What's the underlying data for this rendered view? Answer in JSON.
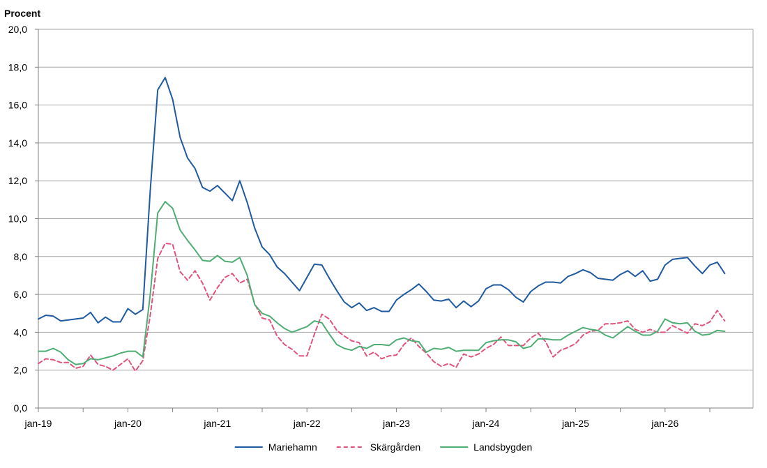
{
  "chart_data": {
    "type": "line",
    "ylabel": "Procent",
    "ylim": [
      0,
      20
    ],
    "yticks": [
      "0,0",
      "2,0",
      "4,0",
      "6,0",
      "8,0",
      "10,0",
      "12,0",
      "14,0",
      "16,0",
      "18,0",
      "20,0"
    ],
    "xtick_labels": [
      "jan-19",
      "jan-20",
      "jan-21",
      "jan-22",
      "jan-23",
      "jan-24",
      "jan-25",
      "jan-26"
    ],
    "x_start": "2019-01",
    "x_count": 93,
    "grid": true,
    "legend": "bottom",
    "series": [
      {
        "name": "Mariehamn",
        "color": "#1f5aa0",
        "dash": "",
        "values": [
          4.7,
          4.9,
          4.85,
          4.6,
          4.65,
          4.7,
          4.75,
          5.05,
          4.5,
          4.8,
          4.55,
          4.55,
          5.25,
          4.95,
          5.2,
          11.5,
          16.8,
          17.45,
          16.3,
          14.3,
          13.2,
          12.65,
          11.65,
          11.45,
          11.75,
          11.35,
          10.95,
          12.0,
          10.85,
          9.5,
          8.5,
          8.1,
          7.45,
          7.1,
          6.65,
          6.2,
          6.9,
          7.6,
          7.55,
          6.85,
          6.2,
          5.6,
          5.3,
          5.55,
          5.15,
          5.3,
          5.1,
          5.1,
          5.7,
          6.0,
          6.25,
          6.55,
          6.15,
          5.7,
          5.65,
          5.75,
          5.3,
          5.65,
          5.35,
          5.65,
          6.3,
          6.5,
          6.5,
          6.25,
          5.85,
          5.6,
          6.15,
          6.45,
          6.65,
          6.65,
          6.6,
          6.95,
          7.1,
          7.3,
          7.15,
          6.85,
          6.8,
          6.75,
          7.05,
          7.25,
          6.95,
          7.25,
          6.7,
          6.8,
          7.55,
          7.85,
          7.9,
          7.95,
          7.5,
          7.1,
          7.55,
          7.7,
          7.1
        ]
      },
      {
        "name": "Skärgården",
        "color": "#e0537b",
        "dash": "6,4",
        "values": [
          2.35,
          2.6,
          2.55,
          2.4,
          2.4,
          2.1,
          2.2,
          2.8,
          2.3,
          2.2,
          2.0,
          2.3,
          2.6,
          1.95,
          2.5,
          4.9,
          7.9,
          8.7,
          8.65,
          7.2,
          6.75,
          7.25,
          6.6,
          5.7,
          6.35,
          6.9,
          7.1,
          6.6,
          6.8,
          5.5,
          4.75,
          4.65,
          3.8,
          3.35,
          3.1,
          2.75,
          2.75,
          3.9,
          4.95,
          4.7,
          4.1,
          3.8,
          3.55,
          3.45,
          2.75,
          2.95,
          2.6,
          2.75,
          2.8,
          3.35,
          3.7,
          3.25,
          2.9,
          2.45,
          2.2,
          2.35,
          2.15,
          2.85,
          2.7,
          2.85,
          3.15,
          3.35,
          3.75,
          3.3,
          3.3,
          3.3,
          3.7,
          3.95,
          3.5,
          2.7,
          3.05,
          3.2,
          3.4,
          3.85,
          4.05,
          4.1,
          4.45,
          4.45,
          4.5,
          4.6,
          4.15,
          4.0,
          4.15,
          4.0,
          4.0,
          4.35,
          4.15,
          3.95,
          4.45,
          4.35,
          4.55,
          5.15,
          4.6
        ]
      },
      {
        "name": "Landsbygden",
        "color": "#4ead73",
        "dash": "",
        "values": [
          3.0,
          3.0,
          3.15,
          2.95,
          2.55,
          2.3,
          2.35,
          2.6,
          2.55,
          2.65,
          2.75,
          2.9,
          3.0,
          3.0,
          2.7,
          6.0,
          10.3,
          10.9,
          10.55,
          9.4,
          8.85,
          8.35,
          7.8,
          7.75,
          8.05,
          7.75,
          7.7,
          7.95,
          7.0,
          5.45,
          5.0,
          4.85,
          4.5,
          4.2,
          4.0,
          4.15,
          4.3,
          4.6,
          4.5,
          3.9,
          3.35,
          3.15,
          3.05,
          3.25,
          3.15,
          3.35,
          3.35,
          3.3,
          3.6,
          3.7,
          3.55,
          3.5,
          2.95,
          3.15,
          3.1,
          3.2,
          3.0,
          3.05,
          3.05,
          3.05,
          3.45,
          3.55,
          3.6,
          3.6,
          3.5,
          3.15,
          3.25,
          3.65,
          3.65,
          3.6,
          3.6,
          3.85,
          4.05,
          4.25,
          4.15,
          4.1,
          3.85,
          3.7,
          4.0,
          4.3,
          4.05,
          3.85,
          3.85,
          4.05,
          4.7,
          4.5,
          4.45,
          4.5,
          4.05,
          3.85,
          3.9,
          4.1,
          4.05
        ]
      }
    ]
  }
}
